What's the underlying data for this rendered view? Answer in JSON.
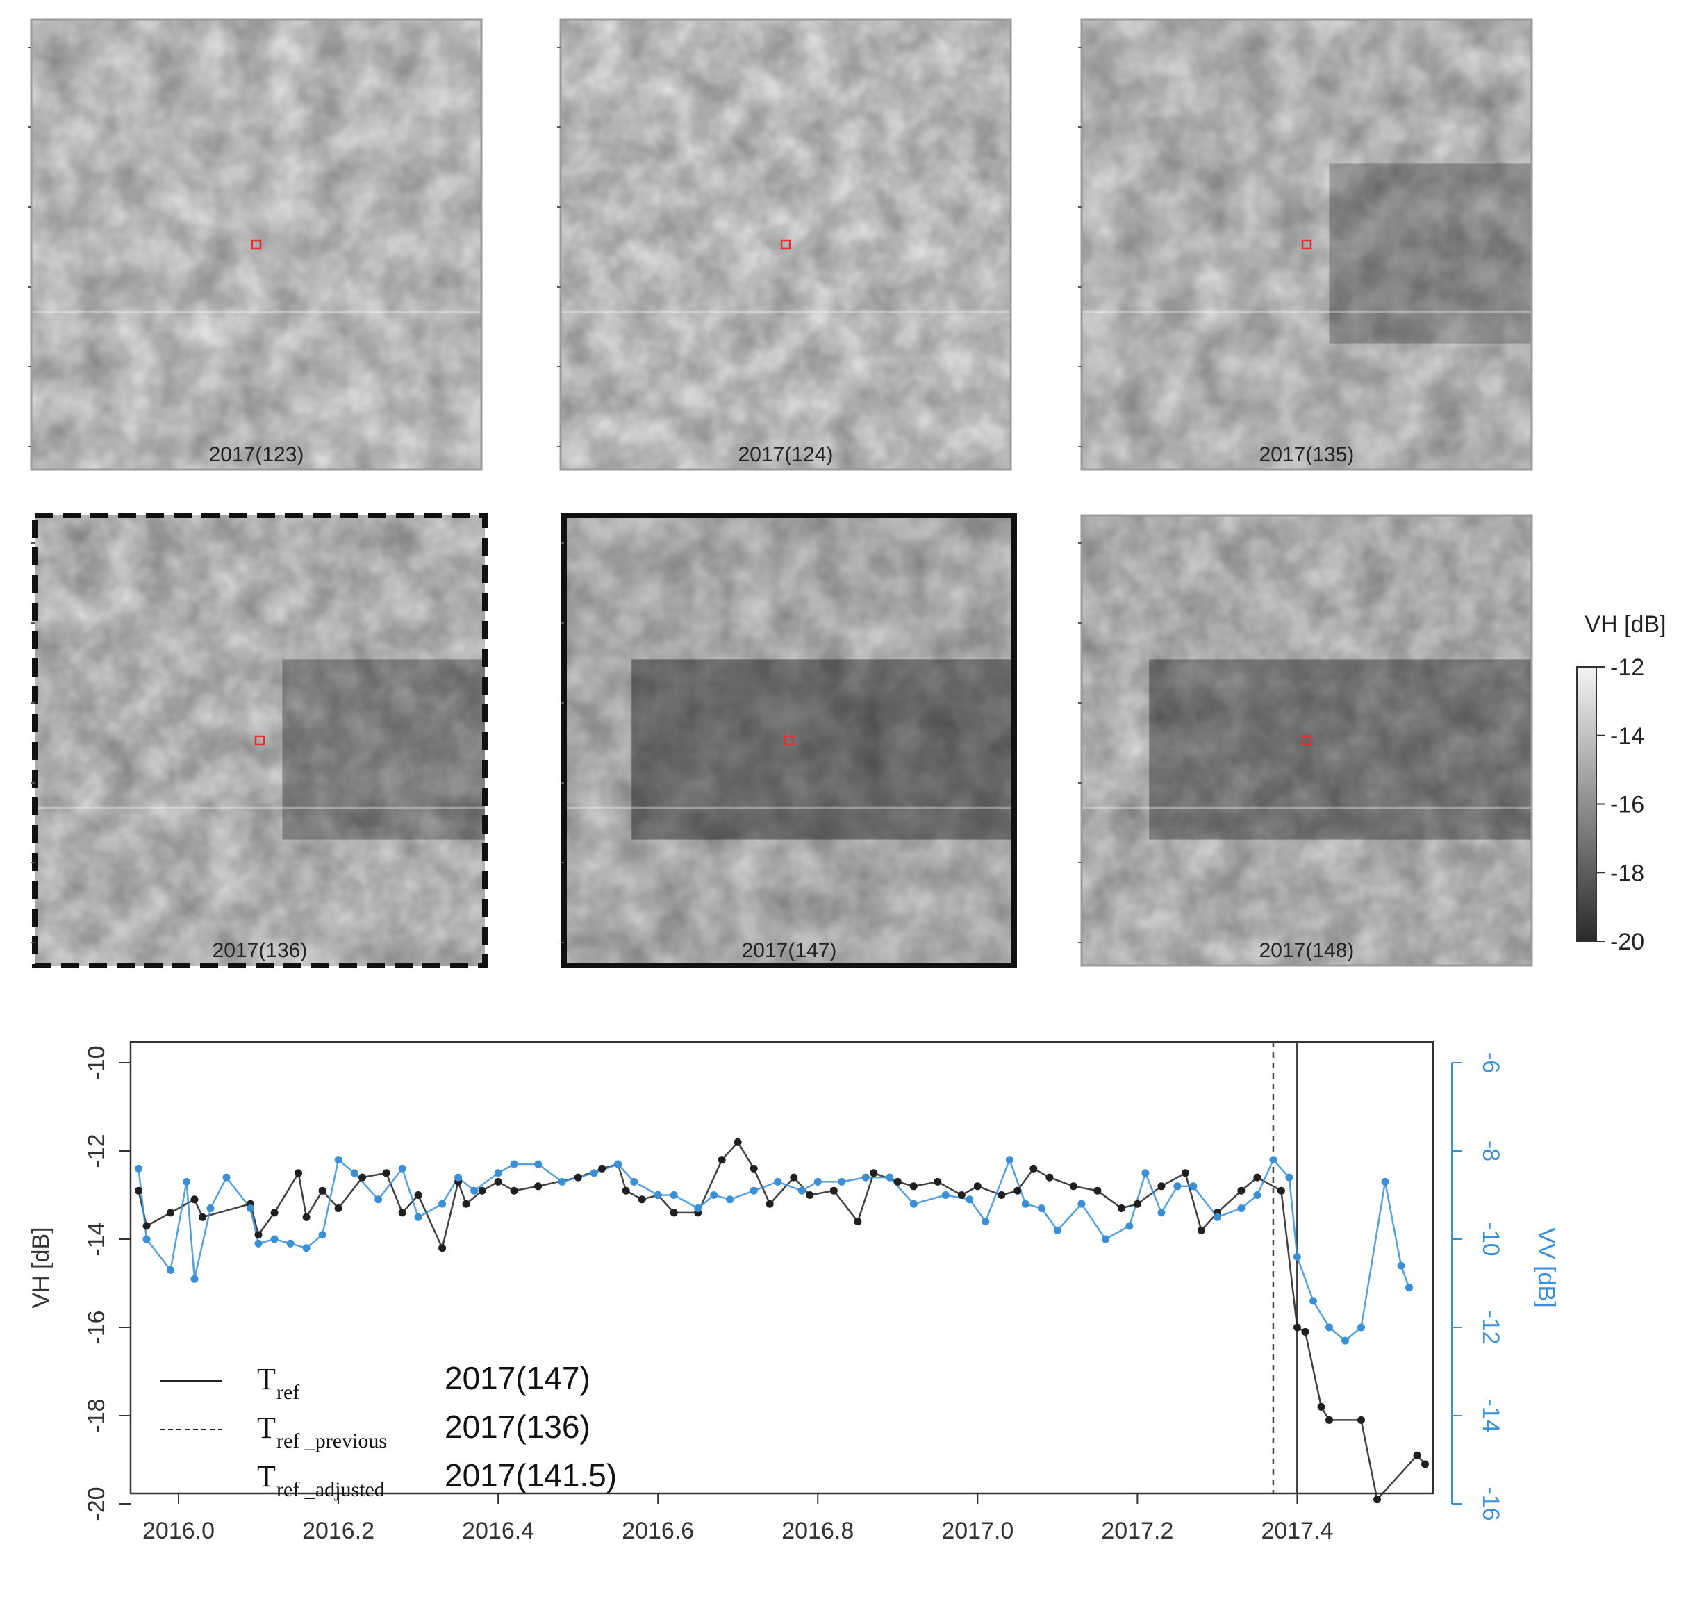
{
  "colors": {
    "vh": "#1f1f1f",
    "vv": "#3a8fd6",
    "marker": "#e03030",
    "frame": "#9a9a9a"
  },
  "panels": [
    {
      "label": "2017(123)",
      "darkness": 0.05,
      "frame": "plain",
      "dark_band": "none"
    },
    {
      "label": "2017(124)",
      "darkness": 0.02,
      "frame": "plain",
      "dark_band": "none"
    },
    {
      "label": "2017(135)",
      "darkness": 0.35,
      "frame": "plain",
      "dark_band": "right"
    },
    {
      "label": "2017(136)",
      "darkness": 0.45,
      "frame": "dashed",
      "dark_band": "right"
    },
    {
      "label": "2017(147)",
      "darkness": 0.75,
      "frame": "bold",
      "dark_band": "full"
    },
    {
      "label": "2017(148)",
      "darkness": 0.6,
      "frame": "plain",
      "dark_band": "full"
    }
  ],
  "colorbar": {
    "title": "VH [dB]",
    "ticks": [
      "-12",
      "-14",
      "-16",
      "-18",
      "-20"
    ],
    "range": [
      -20,
      -12
    ]
  },
  "chart_data": {
    "type": "line",
    "xlabel": "",
    "ylabel": "VH [dB]",
    "y2label": "VV [dB]",
    "xlim": [
      2015.94,
      2017.57
    ],
    "ylim": [
      -20,
      -10
    ],
    "y2lim": [
      -16,
      -6
    ],
    "xticks": [
      "2016.0",
      "2016.2",
      "2016.4",
      "2016.6",
      "2016.8",
      "2017.0",
      "2017.2",
      "2017.4"
    ],
    "yticks": [
      "-10",
      "-12",
      "-14",
      "-16",
      "-18",
      "-20"
    ],
    "y2ticks": [
      "-6",
      "-8",
      "-10",
      "-12",
      "-14",
      "-16"
    ],
    "series": [
      {
        "axis": "left",
        "x": [
          2015.95,
          2015.96,
          2015.99,
          2016.02,
          2016.03,
          2016.09,
          2016.1,
          2016.12,
          2016.15,
          2016.16,
          2016.18,
          2016.2,
          2016.23,
          2016.26,
          2016.28,
          2016.3,
          2016.33,
          2016.35,
          2016.36,
          2016.38,
          2016.4,
          2016.42,
          2016.45,
          2016.5,
          2016.53,
          2016.55,
          2016.56,
          2016.58,
          2016.6,
          2016.62,
          2016.65,
          2016.68,
          2016.7,
          2016.72,
          2016.74,
          2016.77,
          2016.79,
          2016.82,
          2016.85,
          2016.87,
          2016.9,
          2016.92,
          2016.95,
          2016.98,
          2017.0,
          2017.03,
          2017.05,
          2017.07,
          2017.09,
          2017.12,
          2017.15,
          2017.18,
          2017.2,
          2017.23,
          2017.26,
          2017.28,
          2017.3,
          2017.33,
          2017.35,
          2017.38,
          2017.4,
          2017.41,
          2017.43,
          2017.44,
          2017.48,
          2017.5,
          2017.55,
          2017.56
        ],
        "values": [
          -12.9,
          -13.7,
          -13.4,
          -13.1,
          -13.5,
          -13.2,
          -13.9,
          -13.4,
          -12.5,
          -13.5,
          -12.9,
          -13.3,
          -12.6,
          -12.5,
          -13.4,
          -13.0,
          -14.2,
          -12.7,
          -13.2,
          -12.9,
          -12.7,
          -12.9,
          -12.8,
          -12.6,
          -12.4,
          -12.3,
          -12.9,
          -13.1,
          -13.0,
          -13.4,
          -13.4,
          -12.2,
          -11.8,
          -12.4,
          -13.2,
          -12.6,
          -13.0,
          -12.9,
          -13.6,
          -12.5,
          -12.7,
          -12.8,
          -12.7,
          -13.0,
          -12.8,
          -13.0,
          -12.9,
          -12.4,
          -12.6,
          -12.8,
          -12.9,
          -13.3,
          -13.2,
          -12.8,
          -12.5,
          -13.8,
          -13.4,
          -12.9,
          -12.6,
          -12.9,
          -16.0,
          -16.1,
          -17.8,
          -18.1,
          -18.1,
          -19.9,
          -18.9,
          -19.1
        ]
      },
      {
        "axis": "right",
        "x": [
          2015.95,
          2015.96,
          2015.99,
          2016.01,
          2016.02,
          2016.04,
          2016.06,
          2016.09,
          2016.1,
          2016.12,
          2016.14,
          2016.16,
          2016.18,
          2016.2,
          2016.22,
          2016.25,
          2016.28,
          2016.3,
          2016.33,
          2016.35,
          2016.37,
          2016.4,
          2016.42,
          2016.45,
          2016.48,
          2016.52,
          2016.55,
          2016.57,
          2016.6,
          2016.62,
          2016.65,
          2016.67,
          2016.69,
          2016.72,
          2016.75,
          2016.78,
          2016.8,
          2016.83,
          2016.86,
          2016.89,
          2016.92,
          2016.96,
          2016.99,
          2017.01,
          2017.04,
          2017.06,
          2017.08,
          2017.1,
          2017.13,
          2017.16,
          2017.19,
          2017.21,
          2017.23,
          2017.25,
          2017.27,
          2017.3,
          2017.33,
          2017.35,
          2017.37,
          2017.39,
          2017.4,
          2017.42,
          2017.44,
          2017.46,
          2017.48,
          2017.51,
          2017.53,
          2017.54
        ],
        "values": [
          -8.4,
          -10.0,
          -10.7,
          -8.7,
          -10.9,
          -9.3,
          -8.6,
          -9.3,
          -10.1,
          -10.0,
          -10.1,
          -10.2,
          -9.9,
          -8.2,
          -8.5,
          -9.1,
          -8.4,
          -9.5,
          -9.2,
          -8.6,
          -8.9,
          -8.5,
          -8.3,
          -8.3,
          -8.7,
          -8.5,
          -8.3,
          -8.7,
          -9.0,
          -9.0,
          -9.3,
          -9.0,
          -9.1,
          -8.9,
          -8.7,
          -8.9,
          -8.7,
          -8.7,
          -8.6,
          -8.6,
          -9.2,
          -9.0,
          -9.1,
          -9.6,
          -8.2,
          -9.2,
          -9.3,
          -9.8,
          -9.2,
          -10.0,
          -9.7,
          -8.5,
          -9.4,
          -8.8,
          -8.8,
          -9.5,
          -9.3,
          -9.0,
          -8.2,
          -8.6,
          -10.4,
          -11.4,
          -12.0,
          -12.3,
          -12.0,
          -8.7,
          -10.6,
          -11.1
        ]
      }
    ],
    "vlines": [
      {
        "x": 2017.4,
        "style": "solid"
      },
      {
        "x": 2017.37,
        "style": "dashed"
      }
    ],
    "legend": {
      "placement": "bottom-left",
      "entries": [
        {
          "style": "solid",
          "sym": "T",
          "sub": "ref",
          "value": "2017(147)"
        },
        {
          "style": "dashed",
          "sym": "T",
          "sub": "ref _previous",
          "value": "2017(136)"
        },
        {
          "style": "none",
          "sym": "T",
          "sub": "ref _adjusted",
          "value": "2017(141.5)"
        }
      ]
    }
  }
}
